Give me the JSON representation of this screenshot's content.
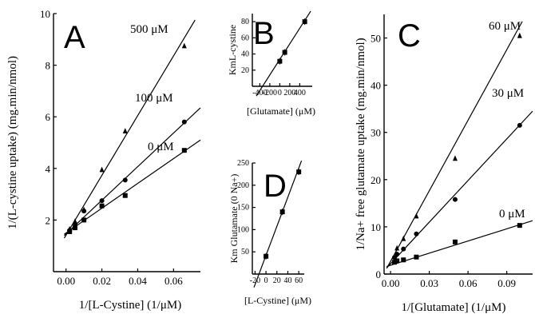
{
  "chart_data": [
    {
      "id": "A",
      "type": "scatter",
      "panel_label": "A",
      "xlabel": "1/[L-Cystine] (1/μM)",
      "ylabel": "1/(L-cystine uptake) (mg.min/nmol)",
      "xlim": [
        -0.007,
        0.075
      ],
      "ylim": [
        0,
        10
      ],
      "x_ticks": [
        0.0,
        0.02,
        0.04,
        0.06
      ],
      "x_tick_labels": [
        "0.00",
        "0.02",
        "0.04",
        "0.06"
      ],
      "y_ticks": [
        2,
        4,
        6,
        8,
        10
      ],
      "y_tick_labels": [
        "2",
        "4",
        "6",
        "8",
        "10"
      ],
      "series": [
        {
          "name": "500 μM",
          "marker": "triangle",
          "x": [
            0.002,
            0.005,
            0.01,
            0.02,
            0.033,
            0.066
          ],
          "y": [
            1.65,
            1.95,
            2.4,
            3.95,
            5.45,
            8.75
          ],
          "fit": [
            [
              -0.001,
              1.3
            ],
            [
              0.072,
              9.75
            ]
          ]
        },
        {
          "name": "100 μM",
          "marker": "circle",
          "x": [
            0.002,
            0.005,
            0.01,
            0.02,
            0.033,
            0.066
          ],
          "y": [
            1.6,
            1.85,
            2.35,
            2.75,
            3.55,
            5.8
          ],
          "fit": [
            [
              -0.001,
              1.4
            ],
            [
              0.075,
              6.35
            ]
          ]
        },
        {
          "name": "0 μM",
          "marker": "square",
          "x": [
            0.002,
            0.005,
            0.01,
            0.02,
            0.033,
            0.066
          ],
          "y": [
            1.55,
            1.7,
            2.0,
            2.55,
            2.95,
            4.7
          ],
          "fit": [
            [
              -0.001,
              1.45
            ],
            [
              0.075,
              5.1
            ]
          ]
        }
      ]
    },
    {
      "id": "B",
      "type": "scatter",
      "panel_label": "B",
      "xlabel": "[Glutamate] (μM)",
      "ylabel": "KmL-cystine",
      "xlim": [
        -550,
        650
      ],
      "ylim": [
        0,
        90
      ],
      "x_ticks": [
        -400,
        -200,
        0,
        200,
        400
      ],
      "x_tick_labels": [
        "-400",
        "-200",
        "0",
        "200",
        "400"
      ],
      "y_ticks": [
        20,
        40,
        60,
        80
      ],
      "y_tick_labels": [
        "20",
        "40",
        "60",
        "80"
      ],
      "series": [
        {
          "name": "",
          "marker": "square",
          "x": [
            0,
            100,
            500
          ],
          "y": [
            31,
            42,
            80
          ],
          "fit": [
            [
              -470,
              -12
            ],
            [
              620,
              93
            ]
          ]
        }
      ]
    },
    {
      "id": "D",
      "type": "scatter",
      "panel_label": "D",
      "xlabel": "[L-Cystine] (μM)",
      "ylabel": "Km Glutamate (0 Na+)",
      "xlim": [
        -25,
        70
      ],
      "ylim": [
        0,
        250
      ],
      "x_ticks": [
        -20,
        0,
        20,
        40,
        60
      ],
      "x_tick_labels": [
        "-20",
        "0",
        "20",
        "40",
        "60"
      ],
      "y_ticks": [
        50,
        100,
        150,
        200,
        250
      ],
      "y_tick_labels": [
        "50",
        "100",
        "150",
        "200",
        "250"
      ],
      "series": [
        {
          "name": "",
          "marker": "square",
          "x": [
            0,
            30,
            60
          ],
          "y": [
            40,
            140,
            230
          ],
          "fit": [
            [
              -22,
              -30
            ],
            [
              65,
              255
            ]
          ]
        }
      ]
    },
    {
      "id": "C",
      "type": "scatter",
      "panel_label": "C",
      "xlabel": "1/[Glutamate] (1/μM)",
      "ylabel": "1/Na+ free glutamate uptake (mg.min/nmol)",
      "xlim": [
        -0.005,
        0.11
      ],
      "ylim": [
        0,
        55
      ],
      "x_ticks": [
        0.0,
        0.03,
        0.06,
        0.09
      ],
      "x_tick_labels": [
        "0.00",
        "0.03",
        "0.06",
        "0.09"
      ],
      "y_ticks": [
        0,
        10,
        20,
        30,
        40,
        50
      ],
      "y_tick_labels": [
        "0",
        "10",
        "20",
        "30",
        "40",
        "50"
      ],
      "series": [
        {
          "name": "60 μM",
          "marker": "triangle",
          "x": [
            0.005,
            0.01,
            0.02,
            0.05,
            0.1
          ],
          "y": [
            5.5,
            7.5,
            12.3,
            24.5,
            50.5
          ],
          "fit": [
            [
              -0.003,
              1.2
            ],
            [
              0.102,
              53.5
            ]
          ]
        },
        {
          "name": "30 μM",
          "marker": "circle",
          "x": [
            0.003,
            0.005,
            0.01,
            0.02,
            0.05,
            0.1
          ],
          "y": [
            3.5,
            4.2,
            5.3,
            8.5,
            15.8,
            31.5
          ],
          "fit": [
            [
              -0.003,
              1.3
            ],
            [
              0.11,
              34.5
            ]
          ]
        },
        {
          "name": "0 μM",
          "marker": "square",
          "x": [
            0.003,
            0.005,
            0.01,
            0.02,
            0.05,
            0.1
          ],
          "y": [
            2.5,
            2.8,
            3.0,
            3.6,
            6.8,
            10.3
          ],
          "fit": [
            [
              -0.003,
              1.6
            ],
            [
              0.11,
              11.3
            ]
          ]
        }
      ]
    }
  ]
}
